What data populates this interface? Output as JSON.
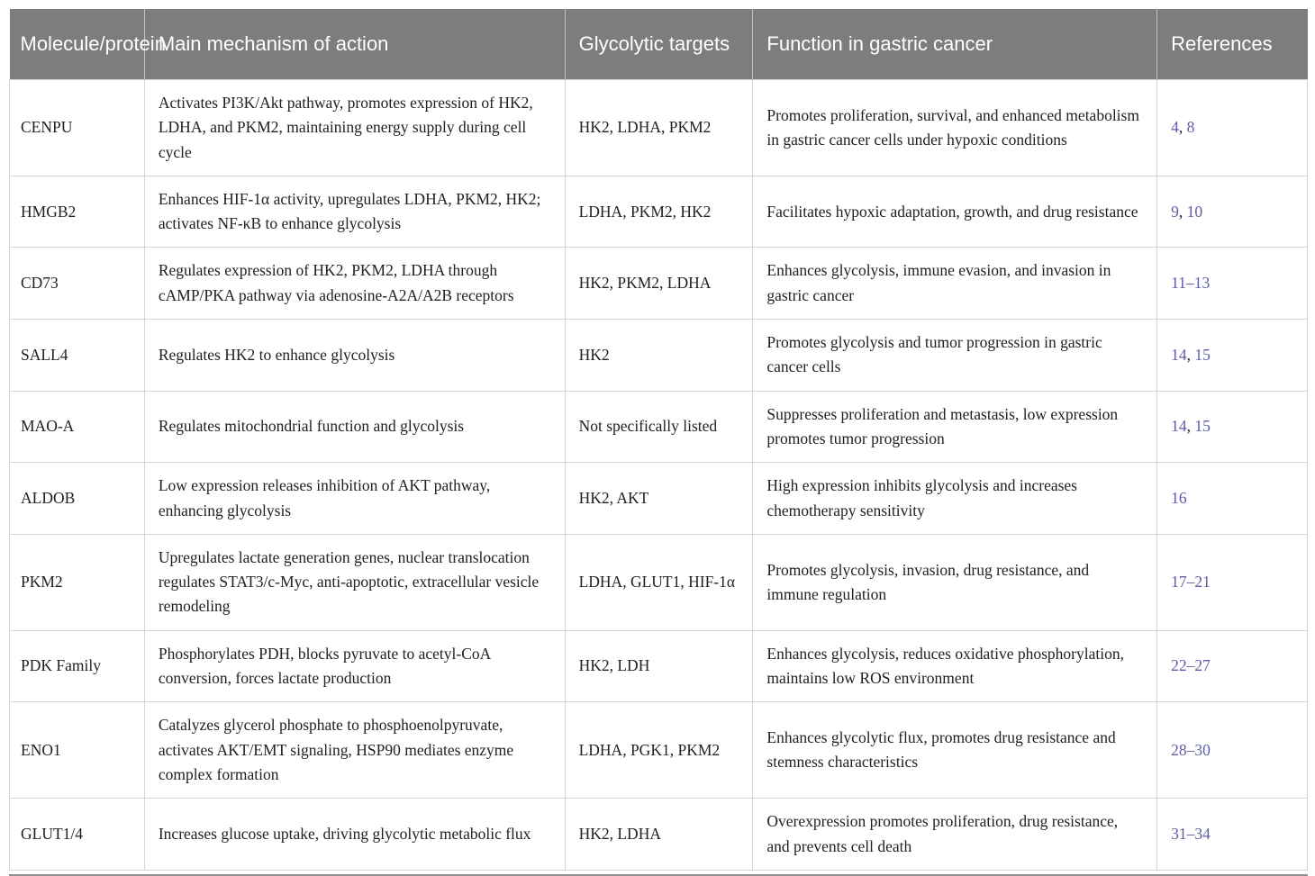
{
  "colors": {
    "header_background": "#7d7d7d",
    "header_text": "#ffffff",
    "body_text": "#212121",
    "reference_link": "#5c5ca8",
    "cell_border": "#d6d6d6",
    "table_bottom_edge": "#8f8f8f"
  },
  "table": {
    "headers": [
      "Molecule/protein",
      "Main mechanism of action",
      "Glycolytic targets",
      "Function in gastric cancer",
      "References"
    ],
    "rows": [
      {
        "molecule": "CENPU",
        "mechanism": "Activates PI3K/Akt pathway, promotes expression of HK2, LDHA, and PKM2, maintaining energy supply during cell cycle",
        "targets": "HK2, LDHA, PKM2",
        "function": "Promotes proliferation, survival, and enhanced metabolism in gastric cancer cells under hypoxic conditions",
        "references": [
          "4",
          "8"
        ]
      },
      {
        "molecule": "HMGB2",
        "mechanism": "Enhances HIF-1α activity, upregulates LDHA, PKM2, HK2; activates NF-κB to enhance glycolysis",
        "targets": "LDHA, PKM2, HK2",
        "function": "Facilitates hypoxic adaptation, growth, and drug resistance",
        "references": [
          "9",
          "10"
        ]
      },
      {
        "molecule": "CD73",
        "mechanism": "Regulates expression of HK2, PKM2, LDHA through cAMP/PKA pathway via adenosine-A2A/A2B receptors",
        "targets": "HK2, PKM2, LDHA",
        "function": "Enhances glycolysis, immune evasion, and invasion in gastric cancer",
        "references": [
          "11–13"
        ]
      },
      {
        "molecule": "SALL4",
        "mechanism": "Regulates HK2 to enhance glycolysis",
        "targets": "HK2",
        "function": "Promotes glycolysis and tumor progression in gastric cancer cells",
        "references": [
          "14",
          "15"
        ]
      },
      {
        "molecule": "MAO-A",
        "mechanism": "Regulates mitochondrial function and glycolysis",
        "targets": "Not specifically listed",
        "function": "Suppresses proliferation and metastasis, low expression promotes tumor progression",
        "references": [
          "14",
          "15"
        ]
      },
      {
        "molecule": "ALDOB",
        "mechanism": "Low expression releases inhibition of AKT pathway, enhancing glycolysis",
        "targets": "HK2, AKT",
        "function": "High expression inhibits glycolysis and increases chemotherapy sensitivity",
        "references": [
          "16"
        ]
      },
      {
        "molecule": "PKM2",
        "mechanism": "Upregulates lactate generation genes, nuclear translocation regulates STAT3/c-Myc, anti-apoptotic, extracellular vesicle remodeling",
        "targets": "LDHA, GLUT1, HIF-1α",
        "function": "Promotes glycolysis, invasion, drug resistance, and immune regulation",
        "references": [
          "17–21"
        ]
      },
      {
        "molecule": "PDK Family",
        "mechanism": "Phosphorylates PDH, blocks pyruvate to acetyl-CoA conversion, forces lactate production",
        "targets": "HK2, LDH",
        "function": "Enhances glycolysis, reduces oxidative phosphorylation, maintains low ROS environment",
        "references": [
          "22–27"
        ]
      },
      {
        "molecule": "ENO1",
        "mechanism": "Catalyzes glycerol phosphate to phosphoenolpyruvate, activates AKT/EMT signaling, HSP90 mediates enzyme complex formation",
        "targets": "LDHA, PGK1, PKM2",
        "function": "Enhances glycolytic flux, promotes drug resistance and stemness characteristics",
        "references": [
          "28–30"
        ]
      },
      {
        "molecule": "GLUT1/4",
        "mechanism": "Increases glucose uptake, driving glycolytic metabolic flux",
        "targets": "HK2, LDHA",
        "function": "Overexpression promotes proliferation, drug resistance, and prevents cell death",
        "references": [
          "31–34"
        ]
      }
    ]
  }
}
